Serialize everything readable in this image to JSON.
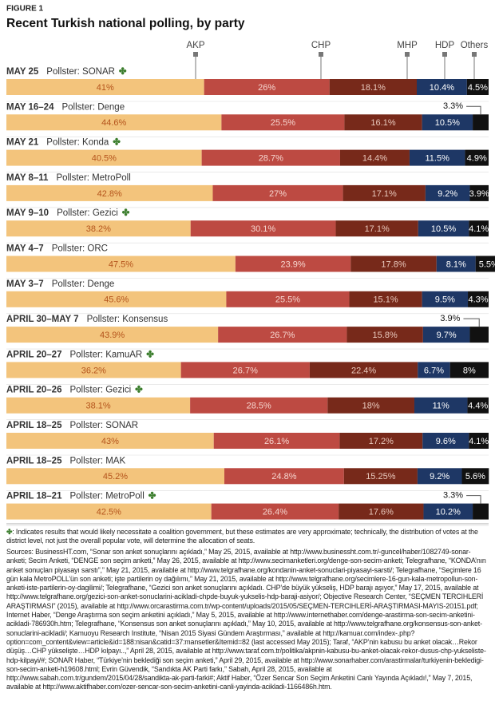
{
  "chart_data": {
    "type": "stacked-bar",
    "figure_label": "FIGURE 1",
    "title": "Recent Turkish national polling, by party",
    "categories": [
      "MAY 25",
      "MAY 16–24",
      "MAY 21",
      "MAY 8–11",
      "MAY 9–10",
      "MAY 4–7",
      "MAY 3–7",
      "APRIL 30–MAY 7",
      "APRIL 20–27",
      "APRIL 20–26",
      "APRIL 18–25",
      "APRIL 18–25",
      "APRIL 18–21"
    ],
    "pollsters": [
      "Pollster: SONAR",
      "Pollster: Denge",
      "Pollster: Konda",
      "Pollster: MetroPoll",
      "Pollster: Gezici",
      "Pollster: ORC",
      "Pollster: Denge",
      "Pollster: Konsensus",
      "Pollster: KamuAR",
      "Pollster: Gezici",
      "Pollster: SONAR",
      "Pollster: MAK",
      "Pollster: MetroPoll"
    ],
    "coalition": [
      true,
      false,
      true,
      false,
      true,
      false,
      false,
      false,
      true,
      true,
      false,
      false,
      true
    ],
    "marker": "✤",
    "xlim": [
      0,
      100
    ],
    "series": [
      {
        "name": "AKP",
        "color": "#f3c47c",
        "values": [
          41,
          44.6,
          40.5,
          42.8,
          38.2,
          47.5,
          45.6,
          43.9,
          36.2,
          38.1,
          43,
          45.2,
          42.5
        ],
        "value_labels": [
          "41%",
          "44.6%",
          "40.5%",
          "42.8%",
          "38.2%",
          "47.5%",
          "45.6%",
          "43.9%",
          "36.2%",
          "38.1%",
          "43%",
          "45.2%",
          "42.5%"
        ]
      },
      {
        "name": "CHP",
        "color": "#bd4a42",
        "values": [
          26,
          25.5,
          28.7,
          27,
          30.1,
          23.9,
          25.5,
          26.7,
          26.7,
          28.5,
          26.1,
          24.8,
          26.4
        ],
        "value_labels": [
          "26%",
          "25.5%",
          "28.7%",
          "27%",
          "30.1%",
          "23.9%",
          "25.5%",
          "26.7%",
          "26.7%",
          "28.5%",
          "26.1%",
          "24.8%",
          "26.4%"
        ]
      },
      {
        "name": "MHP",
        "color": "#77291a",
        "values": [
          18.1,
          16.1,
          14.4,
          17.1,
          17.1,
          17.8,
          15.1,
          15.8,
          22.4,
          18,
          17.2,
          15.25,
          17.6
        ],
        "value_labels": [
          "18.1%",
          "16.1%",
          "14.4%",
          "17.1%",
          "17.1%",
          "17.8%",
          "15.1%",
          "15.8%",
          "22.4%",
          "18%",
          "17.2%",
          "15.25%",
          "17.6%"
        ]
      },
      {
        "name": "HDP",
        "color": "#1e3765",
        "values": [
          10.4,
          10.5,
          11.5,
          9.2,
          10.5,
          8.1,
          9.5,
          9.7,
          6.7,
          11,
          9.6,
          9.2,
          10.2
        ],
        "value_labels": [
          "10.4%",
          "10.5%",
          "11.5%",
          "9.2%",
          "10.5%",
          "8.1%",
          "9.5%",
          "9.7%",
          "6.7%",
          "11%",
          "9.6%",
          "9.2%",
          "10.2%"
        ]
      },
      {
        "name": "Others",
        "color": "#111111",
        "values": [
          4.5,
          3.3,
          4.9,
          3.9,
          4.1,
          5.5,
          4.3,
          3.9,
          8,
          4.4,
          4.1,
          5.6,
          3.3
        ],
        "value_labels": [
          "4.5%",
          "3.3%",
          "4.9%",
          "3.9%",
          "4.1%",
          "5.5%",
          "4.3%",
          "3.9%",
          "8%",
          "4.4%",
          "4.1%",
          "5.6%",
          "3.3%"
        ],
        "label_outside": [
          false,
          true,
          false,
          false,
          false,
          false,
          false,
          true,
          false,
          false,
          false,
          false,
          true
        ]
      }
    ],
    "footnote": ": Indicates results that would likely necessitate a coalition government, but these estimates are very approximate; technically, the distribution of votes at the district level, not just the overall popular vote, will determine the allocation of seats.",
    "sources": "Sources: BusinessHT.com, “Sonar son anket sonuçlarını açıkladı,” May 25, 2015, available at http://www.businessht.com.tr/-guncel/haber/1082749-sonar-anketi; Secim Anketi, “DENGE son seçim anketi,” May 26, 2015, available at http://www.secimanketleri.org/denge-son-secim-anketi; Telegrafhane, “KONDA’nın anket sonuçları piyasayı sarstı”,” May 21, 2015, available at http://www.telgrafhane.org/kondanin-anket-sonuclari-piyasayi-sarsti/; Telegrafhane, “Seçimlere 16 gün kala MetroPOLL’ün son anketi; işte partilerin oy dağılımı,” May 21, 2015, available at http://www.telgrafhane.org/secimlere-16-gun-kala-metropollun-son-anketi-iste-partilerin-oy-dagilimi/; Telegrafhane, “Gezici son anket sonuçlarını açıkladı. CHP’de büyük yükseliş, HDP barajı aşıyor,” May 17, 2015, available at http://www.telgrafhane.org/gezici-son-anket-sonuclarini-acikladi-chpde-buyuk-yukselis-hdp-baraji-asiyor/; Objective Research Center, “SEÇMEN TERCIHLERİ ARAŞTIRMASI” (2015), available at http://www.orcarastirma.com.tr/wp-content/uploads/2015/05/SEÇMEN-TERCIHLERİ-ARAŞTIRMASI-MAYIS-20151.pdf; Internet Haber, “Denge Araştırma son seçim anketini açıkladı,” May 5, 2015, available at http://www.internethaber.com/denge-arastirma-son-secim-anketini-acikladi-786930h.htm; Telegrafhane, “Konsensus son anket sonuçlarını açıkladı,” May 10, 2015, available at http://www.telgrafhane.org/konsensus-son-anket-sonuclarini-acikladi/; Kamuoyu Research Institute, “Nisan 2015 Siyasi Gündem Araştırması,” available at http://kamuar.com/index-.php?option=com_content&view=article&id=188:nisan&catid=37:mansetler&Itemid=82 (last accessed May 2015); Taraf, “AKP’nin kabusu bu anket olacak…Rekor düşüş…CHP yükselişte…HDP kılpayı..,” April 28, 2015, available at http://www.taraf.com.tr/politika/akpnin-kabusu-bu-anket-olacak-rekor-dusus-chp-yukseliste-hdp-kilpayi/#; SONAR Haber, “Türkiye’nin beklediği son seçim anketi,” April 29, 2015, available at http://www.sonarhaber.com/arastirmalar/turkiyenin-bekledigi-son-secim-anketi-h19608.html; Evrin Güvendik, “Sandıkta AK Parti farkı,” Sabah, April 28, 2015, available at http://www.sabah.com.tr/gundem/2015/04/28/sandikta-ak-parti-farki#; Aktif Haber, “Özer Sencar Son Seçim Anketini Canlı Yayında Açıkladı!,” May 7, 2015, available at http://www.aktifhaber.com/ozer-sencar-son-secim-anketini-canli-yayinda-acikladi-1166486h.htm."
  }
}
